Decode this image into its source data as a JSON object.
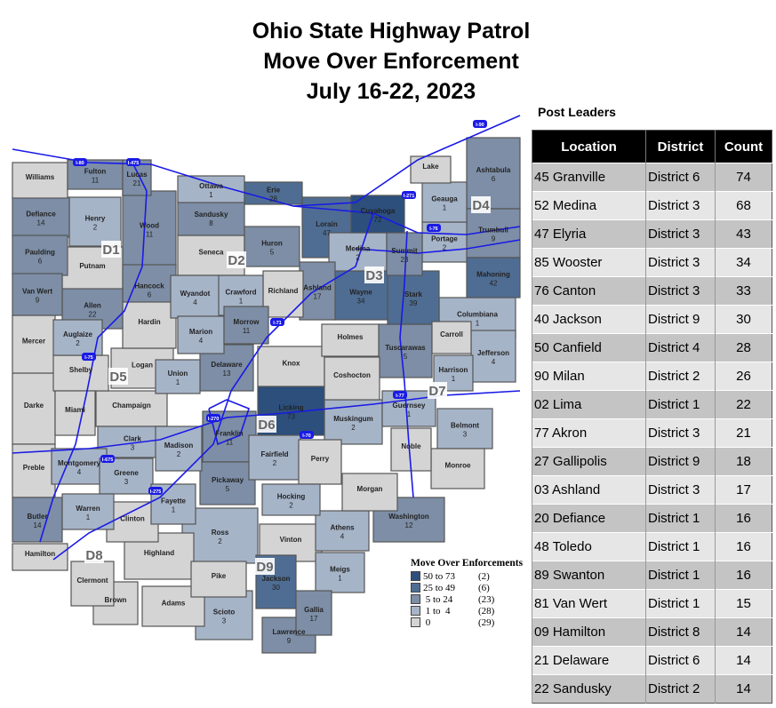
{
  "title": [
    "Ohio State Highway Patrol",
    "Move Over Enforcement",
    "July 16-22, 2023"
  ],
  "post_leaders": {
    "title": "Post Leaders",
    "columns": [
      "Location",
      "District",
      "Count"
    ],
    "rows": [
      [
        "45 Granville",
        "District 6",
        "74"
      ],
      [
        "52 Medina",
        "District 3",
        "68"
      ],
      [
        "47 Elyria",
        "District 3",
        "43"
      ],
      [
        "85 Wooster",
        "District 3",
        "34"
      ],
      [
        "76 Canton",
        "District 3",
        "33"
      ],
      [
        "40 Jackson",
        "District 9",
        "30"
      ],
      [
        "50 Canfield",
        "District 4",
        "28"
      ],
      [
        "90 Milan",
        "District 2",
        "26"
      ],
      [
        "02 Lima",
        "District 1",
        "22"
      ],
      [
        "77 Akron",
        "District 3",
        "21"
      ],
      [
        "27 Gallipolis",
        "District 9",
        "18"
      ],
      [
        "03 Ashland",
        "District 3",
        "17"
      ],
      [
        "20 Defiance",
        "District 1",
        "16"
      ],
      [
        "48 Toledo",
        "District 1",
        "16"
      ],
      [
        "89 Swanton",
        "District 1",
        "16"
      ],
      [
        "81 Van Wert",
        "District 1",
        "15"
      ],
      [
        "09 Hamilton",
        "District 8",
        "14"
      ],
      [
        "21 Delaware",
        "District 6",
        "14"
      ],
      [
        "22 Sandusky",
        "District 2",
        "14"
      ]
    ]
  },
  "legend": {
    "title": "Move Over Enforcements",
    "classes": [
      {
        "range": "50 to 73",
        "count": "(2)",
        "color": "#2c4f7c"
      },
      {
        "range": "25 to 49",
        "count": "(6)",
        "color": "#4f6d93"
      },
      {
        "range": " 5 to 24",
        "count": "(23)",
        "color": "#7d8ea6"
      },
      {
        "range": " 1 to  4",
        "count": "(28)",
        "color": "#a6b4c8"
      },
      {
        "range": " 0",
        "count": "(29)",
        "color": "#d4d4d4"
      }
    ]
  },
  "highway_color": "#1a1ae6",
  "counties": [
    [
      "Williams",
      ""
    ],
    [
      "Fulton",
      "11"
    ],
    [
      "Lucas",
      "21"
    ],
    [
      "Wood",
      "11"
    ],
    [
      "Ottawa",
      "1"
    ],
    [
      "Sandusky",
      "8"
    ],
    [
      "Erie",
      "28"
    ],
    [
      "Lorain",
      "47"
    ],
    [
      "Cuyahoga",
      "72"
    ],
    [
      "Lake",
      ""
    ],
    [
      "Geauga",
      "1"
    ],
    [
      "Ashtabula",
      "6"
    ],
    [
      "Trumbull",
      "9"
    ],
    [
      "Portage",
      "2"
    ],
    [
      "Summit",
      "23"
    ],
    [
      "Medina",
      "2"
    ],
    [
      "Huron",
      "5"
    ],
    [
      "Seneca",
      ""
    ],
    [
      "Henry",
      "2"
    ],
    [
      "Defiance",
      "14"
    ],
    [
      "Paulding",
      "6"
    ],
    [
      "Putnam",
      ""
    ],
    [
      "Hancock",
      "6"
    ],
    [
      "Van Wert",
      "9"
    ],
    [
      "Allen",
      "22"
    ],
    [
      "Wyandot",
      "4"
    ],
    [
      "Crawford",
      "1"
    ],
    [
      "Richland",
      ""
    ],
    [
      "Ashland",
      "17"
    ],
    [
      "Wayne",
      "34"
    ],
    [
      "Stark",
      "39"
    ],
    [
      "Mahoning",
      "42"
    ],
    [
      "Columbiana",
      "1"
    ],
    [
      "Mercer",
      ""
    ],
    [
      "Auglaize",
      "2"
    ],
    [
      "Hardin",
      ""
    ],
    [
      "Marion",
      "4"
    ],
    [
      "Morrow",
      "11"
    ],
    [
      "Holmes",
      ""
    ],
    [
      "Tuscarawas",
      "5"
    ],
    [
      "Carroll",
      ""
    ],
    [
      "Jefferson",
      "4"
    ],
    [
      "Harrison",
      "1"
    ],
    [
      "Logan",
      ""
    ],
    [
      "Shelby",
      ""
    ],
    [
      "Union",
      "1"
    ],
    [
      "Delaware",
      "13"
    ],
    [
      "Knox",
      ""
    ],
    [
      "Coshocton",
      ""
    ],
    [
      "Darke",
      ""
    ],
    [
      "Miami",
      ""
    ],
    [
      "Champaign",
      ""
    ],
    [
      "Licking",
      "73"
    ],
    [
      "Muskingum",
      "2"
    ],
    [
      "Guernsey",
      "1"
    ],
    [
      "Belmont",
      "3"
    ],
    [
      "Clark",
      "3"
    ],
    [
      "Madison",
      "2"
    ],
    [
      "Franklin",
      "11"
    ],
    [
      "Fairfield",
      "2"
    ],
    [
      "Perry",
      ""
    ],
    [
      "Noble",
      ""
    ],
    [
      "Monroe",
      ""
    ],
    [
      "Preble",
      ""
    ],
    [
      "Montgomery",
      "4"
    ],
    [
      "Greene",
      "3"
    ],
    [
      "Pickaway",
      "5"
    ],
    [
      "Hocking",
      "2"
    ],
    [
      "Morgan",
      ""
    ],
    [
      "Washington",
      "12"
    ],
    [
      "Butler",
      "14"
    ],
    [
      "Warren",
      "1"
    ],
    [
      "Clinton",
      ""
    ],
    [
      "Fayette",
      "1"
    ],
    [
      "Ross",
      "2"
    ],
    [
      "Vinton",
      ""
    ],
    [
      "Athens",
      "4"
    ],
    [
      "Hamilton",
      ""
    ],
    [
      "Clermont",
      ""
    ],
    [
      "Brown",
      ""
    ],
    [
      "Highland",
      ""
    ],
    [
      "Adams",
      ""
    ],
    [
      "Pike",
      ""
    ],
    [
      "Scioto",
      "3"
    ],
    [
      "Jackson",
      "30"
    ],
    [
      "Meigs",
      "1"
    ],
    [
      "Gallia",
      "17"
    ],
    [
      "Lawrence",
      "9"
    ]
  ],
  "districts": [
    "D1",
    "D2",
    "D3",
    "D4",
    "D5",
    "D6",
    "D7",
    "D8",
    "D9"
  ],
  "highways": [
    "I-80",
    "I-475",
    "I-271",
    "I-90",
    "I-76",
    "I-71",
    "I-75",
    "I-270",
    "I-70",
    "I-77",
    "I-675",
    "I-275"
  ]
}
